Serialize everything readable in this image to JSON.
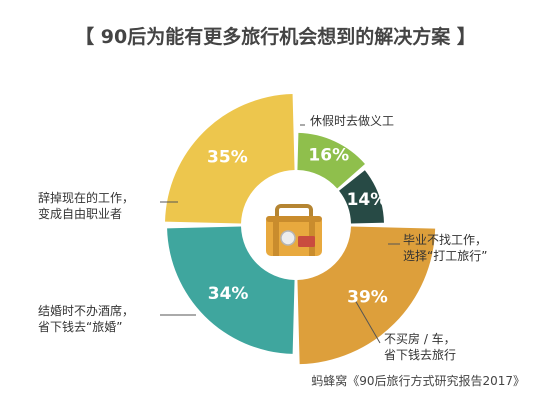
{
  "chart_data": {
    "type": "pie",
    "title": "【 90后为能有更多旅行机会想到的解决方案 】",
    "categories": [
      "休假时去做义工",
      "辞掉现在的工作，变成自由职业者",
      "结婚时不办酒席，省下钱去“旅婚”",
      "不买房 / 车，省下钱去旅行",
      "毕业不找工作，选择“打工旅行”"
    ],
    "annotations": [
      [
        "休假时去做义工"
      ],
      [
        "辞掉现在的工作，",
        "变成自由职业者"
      ],
      [
        "结婚时不办酒席，",
        "省下钱去“旅婚”"
      ],
      [
        "不买房 / 车，",
        "省下钱去旅行"
      ],
      [
        "毕业不找工作，",
        "选择“打工旅行”"
      ]
    ],
    "values": [
      39,
      35,
      34,
      16,
      14
    ],
    "value_labels": [
      "39%",
      "35%",
      "34%",
      "16%",
      "14%"
    ],
    "unit": "%",
    "colors": [
      "#DD9F3B",
      "#EDC64D",
      "#3FA69E",
      "#8FBF4C",
      "#274A45"
    ],
    "legend": "none",
    "source": "蚂蜂窝《90后旅行方式研究报告2017》"
  },
  "center_icon": "suitcase-icon"
}
